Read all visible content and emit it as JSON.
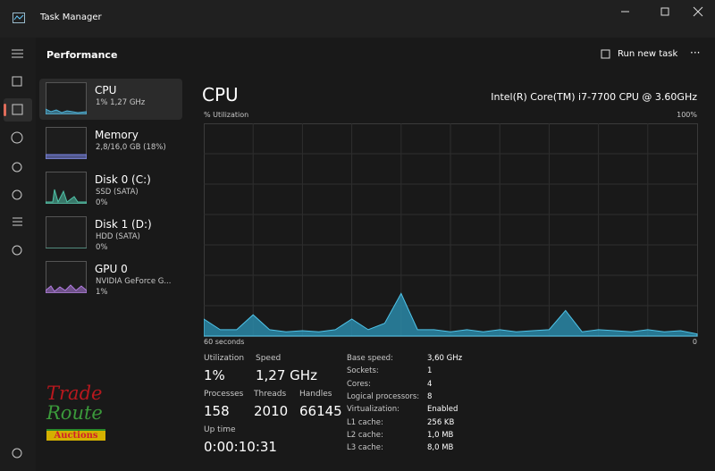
{
  "window": {
    "title": "Task Manager"
  },
  "header": {
    "title": "Performance",
    "run_task": "Run new task"
  },
  "sidebar": [
    {
      "name": "CPU",
      "details": [
        "1%  1,27 GHz"
      ]
    },
    {
      "name": "Memory",
      "details": [
        "2,8/16,0 GB (18%)"
      ]
    },
    {
      "name": "Disk 0 (C:)",
      "details": [
        "SSD (SATA)",
        "0%"
      ]
    },
    {
      "name": "Disk 1 (D:)",
      "details": [
        "HDD (SATA)",
        "0%"
      ]
    },
    {
      "name": "GPU 0",
      "details": [
        "NVIDIA GeForce G...",
        "1%"
      ]
    }
  ],
  "main": {
    "title": "CPU",
    "processor": "Intel(R) Core(TM) i7-7700 CPU @ 3.60GHz",
    "graph": {
      "y_label": "% Utilization",
      "y_max_label": "100%",
      "x_label": "60 seconds",
      "x_min_label": "0",
      "ylim": [
        0,
        100
      ],
      "values": [
        8,
        3,
        3,
        10,
        3,
        2,
        2.5,
        2,
        3,
        8,
        3,
        6,
        20,
        3,
        3,
        2,
        3,
        2,
        3,
        2,
        2.5,
        3,
        12,
        2,
        3,
        2.5,
        2,
        3,
        2,
        2.5,
        1
      ]
    },
    "stats": [
      {
        "label": "Utilization",
        "value": "1%"
      },
      {
        "label": "Speed",
        "value": "1,27 GHz"
      },
      {
        "label": "Processes",
        "value": 158
      },
      {
        "label": "Threads",
        "value": 2010
      },
      {
        "label": "Handles",
        "value": 66145
      },
      {
        "label": "Up time",
        "value": "0:00:10:31"
      }
    ],
    "specs": [
      {
        "label": "Base speed:",
        "value": "3,60 GHz"
      },
      {
        "label": "Sockets:",
        "value": 1
      },
      {
        "label": "Cores:",
        "value": 4
      },
      {
        "label": "Logical processors:",
        "value": 8
      },
      {
        "label": "Virtualization:",
        "value": "Enabled"
      },
      {
        "label": "L1 cache:",
        "value": "256 KB"
      },
      {
        "label": "L2 cache:",
        "value": "1,0 MB"
      },
      {
        "label": "L3 cache:",
        "value": "8,0 MB"
      }
    ]
  },
  "watermark": {
    "line1": "Trade",
    "line2": "Route",
    "line3": "Auctions"
  }
}
